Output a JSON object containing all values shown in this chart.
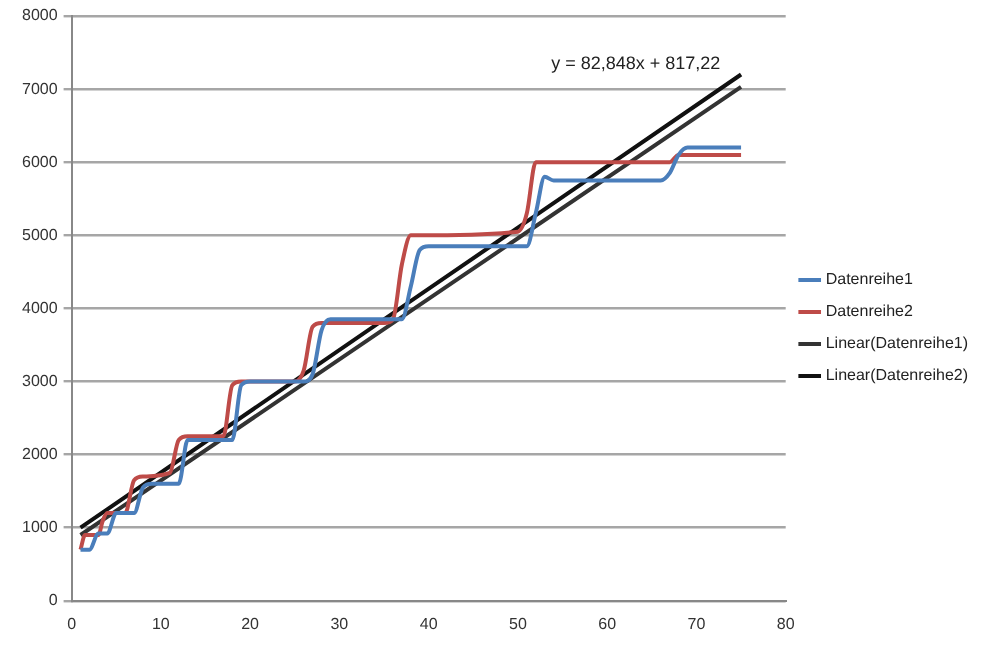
{
  "chart_data": {
    "type": "line",
    "xlim": [
      0,
      80
    ],
    "xticks": [
      0,
      10,
      20,
      30,
      40,
      50,
      60,
      70,
      80
    ],
    "ylim": [
      0,
      8000
    ],
    "yticks": [
      0,
      1000,
      2000,
      3000,
      4000,
      5000,
      6000,
      7000,
      8000
    ],
    "grid": "y",
    "legend": "right",
    "marker": "none",
    "line_style": "solid",
    "series": [
      {
        "name": "Datenreihe1",
        "color": "#4a7ebb",
        "x": [
          1,
          2,
          3,
          4,
          5,
          6,
          7,
          8,
          9,
          12,
          13,
          14,
          18,
          19,
          20,
          26,
          27,
          28,
          29,
          37,
          38,
          39,
          40,
          51,
          52,
          53,
          54,
          66,
          67,
          68,
          69,
          75
        ],
        "values": [
          700,
          700,
          920,
          920,
          1200,
          1200,
          1200,
          1550,
          1600,
          1600,
          2200,
          2200,
          2200,
          2950,
          3000,
          3000,
          3100,
          3700,
          3850,
          3850,
          4300,
          4800,
          4850,
          4850,
          5300,
          5800,
          5750,
          5750,
          5850,
          6100,
          6200,
          6200
        ]
      },
      {
        "name": "Datenreihe2",
        "color": "#be4b48",
        "x": [
          1,
          1.5,
          3,
          3.5,
          4,
          6,
          7,
          8,
          11,
          12,
          13,
          17,
          18,
          19,
          25,
          26,
          27,
          28,
          35,
          36,
          37,
          38,
          39,
          50,
          51,
          52,
          53,
          67,
          68,
          69,
          75
        ],
        "values": [
          700,
          900,
          900,
          1100,
          1200,
          1200,
          1650,
          1700,
          1750,
          2200,
          2250,
          2250,
          2950,
          3000,
          3000,
          3150,
          3750,
          3800,
          3800,
          3850,
          4600,
          5000,
          5000,
          5050,
          5300,
          6000,
          6000,
          6000,
          6100,
          6100,
          6100
        ]
      },
      {
        "name": "Linear(Datenreihe1)",
        "color": "#333333",
        "x": [
          1,
          75
        ],
        "values": [
          900,
          7030
        ]
      },
      {
        "name": "Linear(Datenreihe2)",
        "color": "#111111",
        "x": [
          1,
          75
        ],
        "values": [
          1000,
          7200
        ]
      }
    ],
    "annotations": [
      "y = 82,848x + 817,22"
    ]
  }
}
